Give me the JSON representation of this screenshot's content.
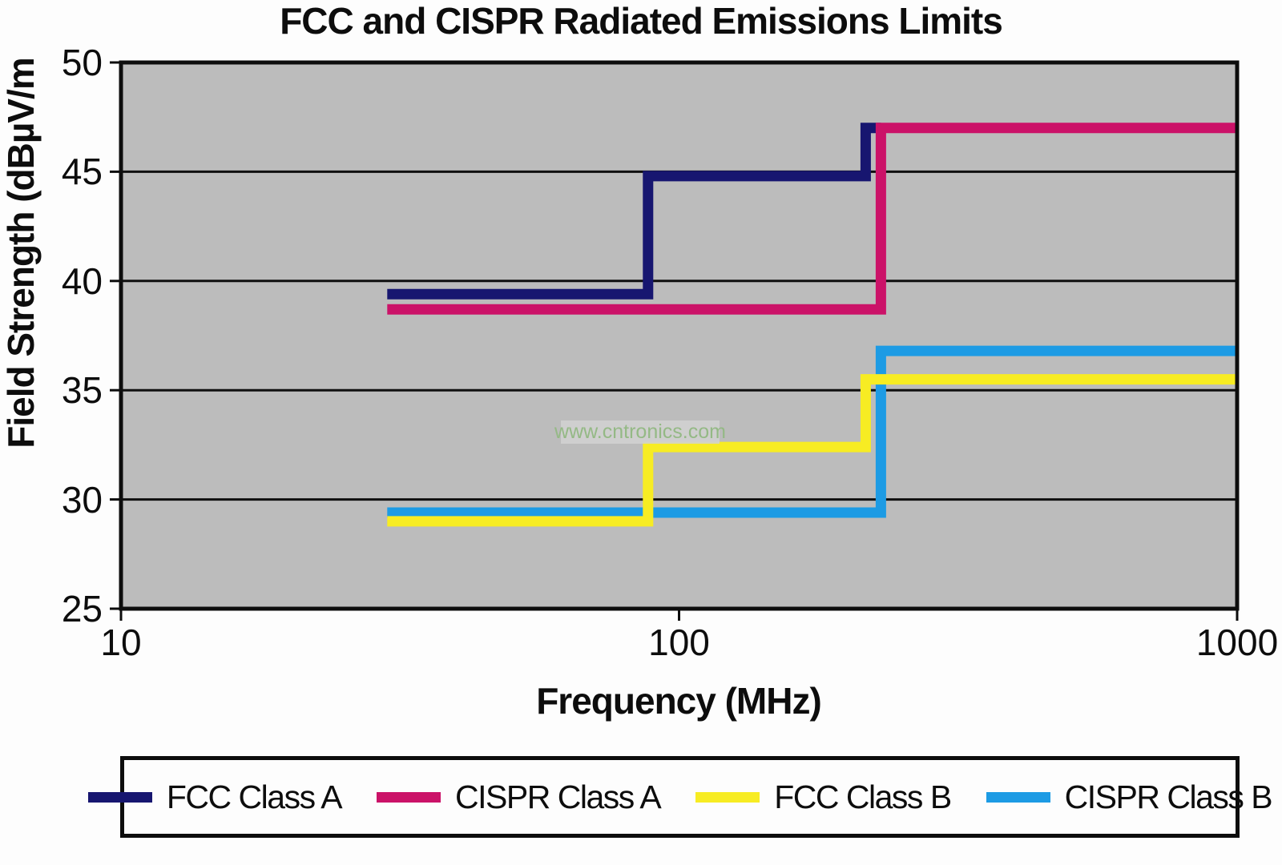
{
  "title": "FCC and CISPR Radiated Emissions Limits",
  "watermark": {
    "text": "www.cntronics.com",
    "box_color": "#d2d2d2",
    "text_color": "#94b985"
  },
  "axes": {
    "x": {
      "title": "Frequency (MHz)",
      "scale": "log",
      "min": 10,
      "max": 1000,
      "ticks": [
        {
          "value": 10,
          "label": "10"
        },
        {
          "value": 100,
          "label": "100"
        },
        {
          "value": 1000,
          "label": "1000"
        }
      ]
    },
    "y": {
      "title": "Field Strength (dBµV/m",
      "min": 25,
      "max": 50,
      "tick_step": 5,
      "ticks": [
        {
          "value": 50,
          "label": "50"
        },
        {
          "value": 45,
          "label": "45"
        },
        {
          "value": 40,
          "label": "40"
        },
        {
          "value": 35,
          "label": "35"
        },
        {
          "value": 30,
          "label": "30"
        },
        {
          "value": 25,
          "label": "25"
        }
      ]
    }
  },
  "chart_data": {
    "type": "line",
    "subtype": "step-limit-lines",
    "title": "FCC and CISPR Radiated Emissions Limits",
    "xlabel": "Frequency (MHz)",
    "ylabel": "Field Strength (dBµV/m",
    "x_scale": "log",
    "xlim": [
      10,
      1000
    ],
    "ylim": [
      25,
      50
    ],
    "grid": "horizontal",
    "plot_bg": "#bcbcbc",
    "frame_color": "#0d0d0d",
    "series": [
      {
        "name": "FCC Class A",
        "color": "#171670",
        "points": [
          [
            30,
            39.4
          ],
          [
            88,
            39.4
          ],
          [
            88,
            44.8
          ],
          [
            216,
            44.8
          ],
          [
            216,
            47
          ],
          [
            230,
            47
          ]
        ]
      },
      {
        "name": "CISPR Class A",
        "color": "#cb1268",
        "points": [
          [
            30,
            38.7
          ],
          [
            230,
            38.7
          ],
          [
            230,
            47
          ],
          [
            1000,
            47
          ]
        ]
      },
      {
        "name": "FCC Class B",
        "color": "#f7ec23",
        "points": [
          [
            30,
            29.0
          ],
          [
            88,
            29.0
          ],
          [
            88,
            32.4
          ],
          [
            216,
            32.4
          ],
          [
            216,
            35.5
          ],
          [
            1000,
            35.5
          ]
        ]
      },
      {
        "name": "CISPR Class B",
        "color": "#1d9be4",
        "points": [
          [
            30,
            29.4
          ],
          [
            230,
            29.4
          ],
          [
            230,
            36.8
          ],
          [
            1000,
            36.8
          ]
        ]
      }
    ],
    "legend_position": "bottom"
  }
}
